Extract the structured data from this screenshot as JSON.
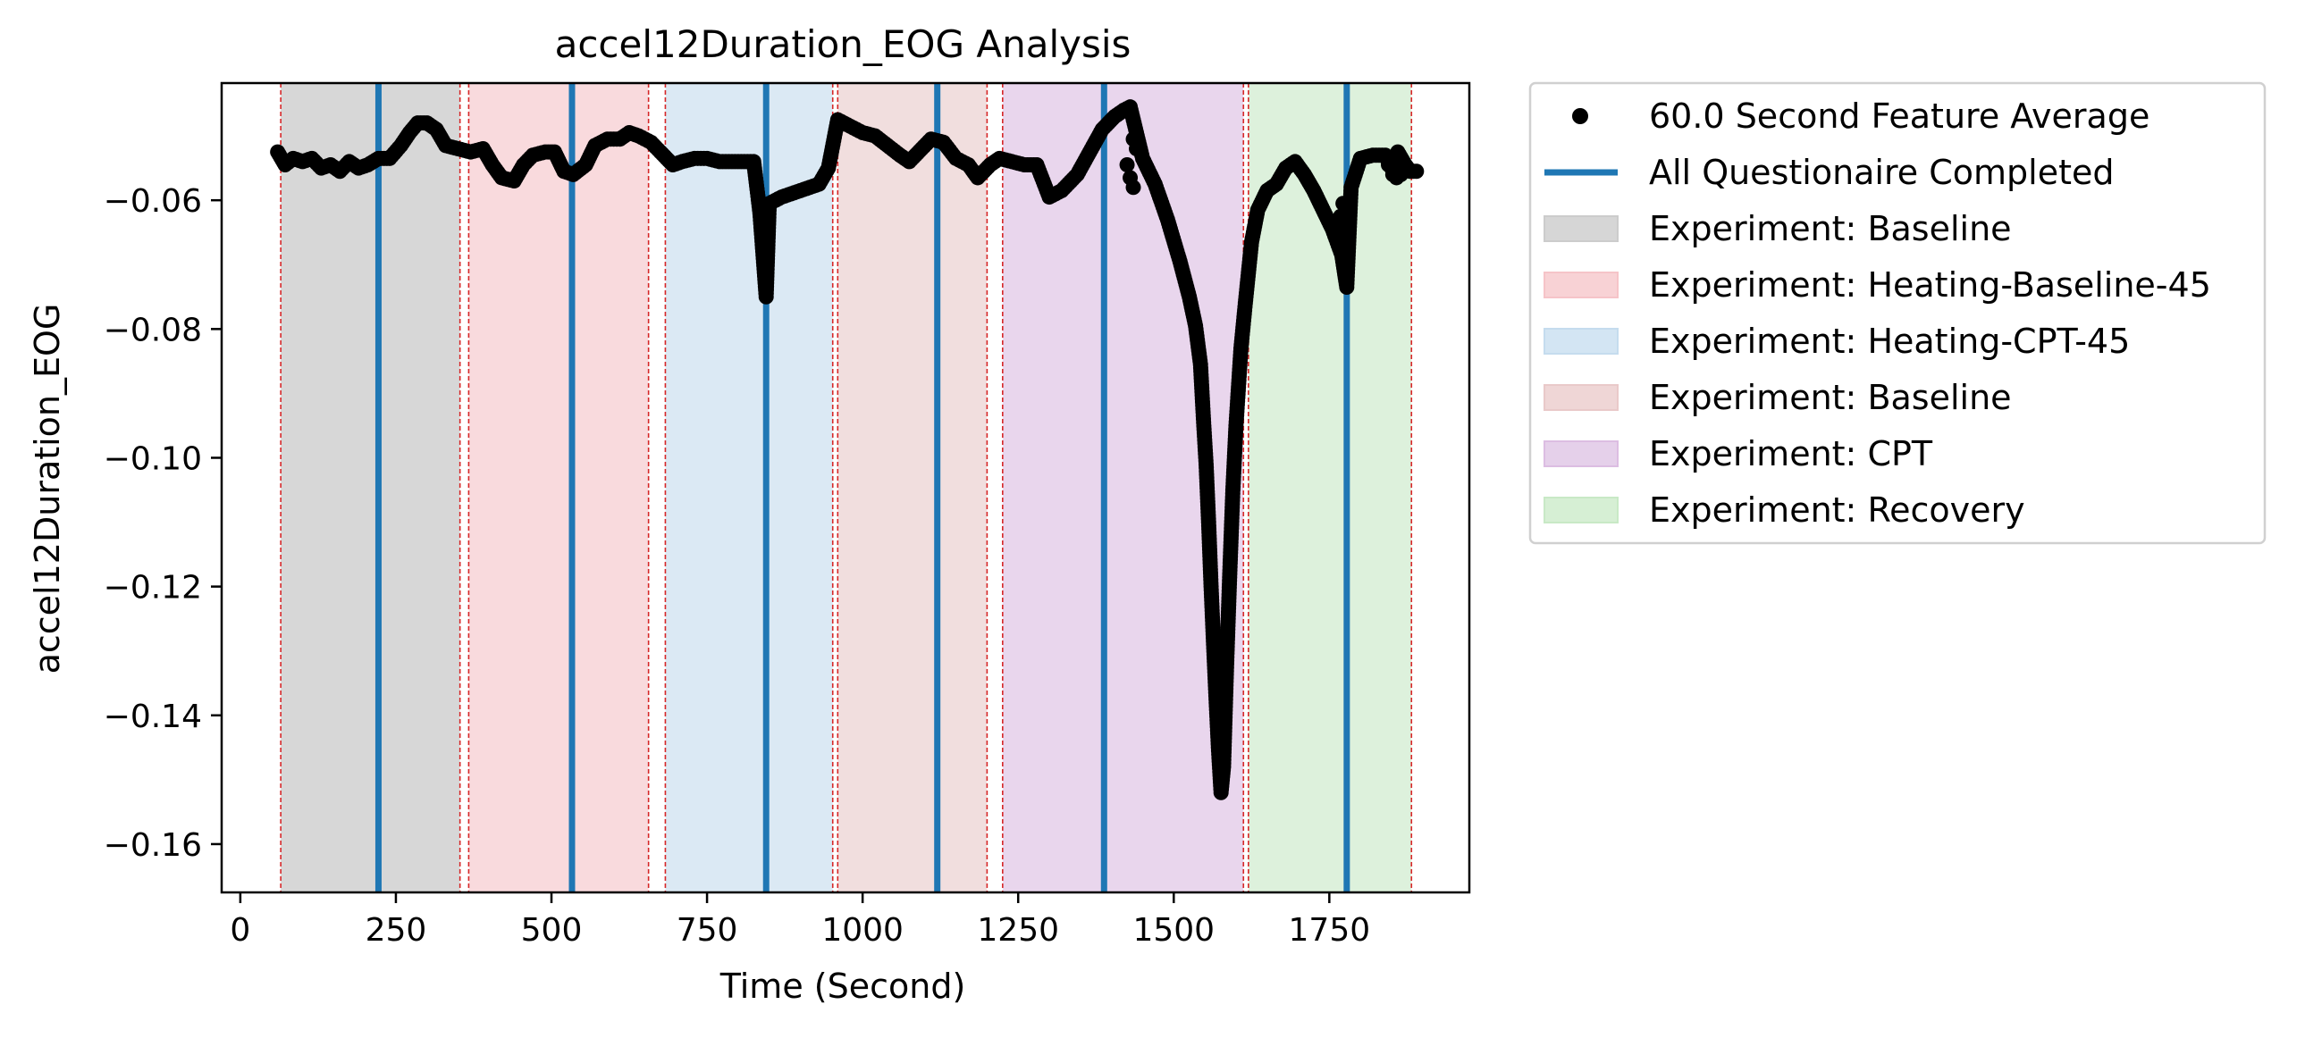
{
  "chart_data": {
    "type": "scatter",
    "title": "accel12Duration_EOG Analysis",
    "xlabel": "Time (Second)",
    "ylabel": "accel12Duration_EOG",
    "xlim": [
      -30,
      1975
    ],
    "ylim": [
      -0.1675,
      -0.0418
    ],
    "xticks": [
      0,
      250,
      500,
      750,
      1000,
      1250,
      1500,
      1750
    ],
    "xtick_labels": [
      "0",
      "250",
      "500",
      "750",
      "1000",
      "1250",
      "1500",
      "1750"
    ],
    "yticks": [
      -0.06,
      -0.08,
      -0.1,
      -0.12,
      -0.14,
      -0.16
    ],
    "ytick_labels": [
      "−0.06",
      "−0.08",
      "−0.10",
      "−0.12",
      "−0.14",
      "−0.16"
    ],
    "grid": false,
    "legend_position": "outside-top-right",
    "series": [
      {
        "name": "60.0 Second Feature Average",
        "kind": "markers",
        "color": "#000000",
        "keypoints": [
          [
            60,
            -0.0525
          ],
          [
            72,
            -0.0545
          ],
          [
            85,
            -0.0535
          ],
          [
            100,
            -0.054
          ],
          [
            115,
            -0.0535
          ],
          [
            130,
            -0.055
          ],
          [
            145,
            -0.0545
          ],
          [
            160,
            -0.0555
          ],
          [
            175,
            -0.054
          ],
          [
            190,
            -0.055
          ],
          [
            205,
            -0.0545
          ],
          [
            222,
            -0.0535
          ],
          [
            240,
            -0.0535
          ],
          [
            258,
            -0.0515
          ],
          [
            272,
            -0.0495
          ],
          [
            285,
            -0.048
          ],
          [
            300,
            -0.048
          ],
          [
            315,
            -0.049
          ],
          [
            330,
            -0.0515
          ],
          [
            350,
            -0.052
          ],
          [
            370,
            -0.0525
          ],
          [
            390,
            -0.052
          ],
          [
            405,
            -0.0545
          ],
          [
            420,
            -0.0565
          ],
          [
            440,
            -0.057
          ],
          [
            455,
            -0.0545
          ],
          [
            470,
            -0.053
          ],
          [
            490,
            -0.0525
          ],
          [
            505,
            -0.0525
          ],
          [
            520,
            -0.0555
          ],
          [
            535,
            -0.056
          ],
          [
            555,
            -0.0545
          ],
          [
            570,
            -0.0515
          ],
          [
            590,
            -0.0505
          ],
          [
            610,
            -0.0505
          ],
          [
            625,
            -0.0495
          ],
          [
            640,
            -0.05
          ],
          [
            660,
            -0.051
          ],
          [
            675,
            -0.0525
          ],
          [
            695,
            -0.0545
          ],
          [
            710,
            -0.054
          ],
          [
            730,
            -0.0535
          ],
          [
            750,
            -0.0535
          ],
          [
            770,
            -0.054
          ],
          [
            790,
            -0.054
          ],
          [
            810,
            -0.054
          ],
          [
            825,
            -0.054
          ],
          [
            835,
            -0.062
          ],
          [
            845,
            -0.075
          ],
          [
            850,
            -0.0605
          ],
          [
            870,
            -0.0595
          ],
          [
            900,
            -0.0585
          ],
          [
            930,
            -0.0575
          ],
          [
            945,
            -0.055
          ],
          [
            960,
            -0.0475
          ],
          [
            980,
            -0.0485
          ],
          [
            1000,
            -0.0495
          ],
          [
            1020,
            -0.05
          ],
          [
            1040,
            -0.0515
          ],
          [
            1060,
            -0.053
          ],
          [
            1075,
            -0.054
          ],
          [
            1095,
            -0.052
          ],
          [
            1110,
            -0.0505
          ],
          [
            1130,
            -0.051
          ],
          [
            1150,
            -0.0535
          ],
          [
            1170,
            -0.0545
          ],
          [
            1185,
            -0.0565
          ],
          [
            1205,
            -0.0545
          ],
          [
            1220,
            -0.0535
          ],
          [
            1240,
            -0.054
          ],
          [
            1260,
            -0.0545
          ],
          [
            1280,
            -0.0545
          ],
          [
            1300,
            -0.0595
          ],
          [
            1320,
            -0.0585
          ],
          [
            1345,
            -0.056
          ],
          [
            1365,
            -0.0525
          ],
          [
            1385,
            -0.049
          ],
          [
            1405,
            -0.047
          ],
          [
            1420,
            -0.046
          ],
          [
            1430,
            -0.0455
          ],
          [
            1435,
            -0.0475
          ],
          [
            1450,
            -0.0535
          ],
          [
            1470,
            -0.0575
          ],
          [
            1490,
            -0.063
          ],
          [
            1510,
            -0.0695
          ],
          [
            1525,
            -0.075
          ],
          [
            1535,
            -0.0795
          ],
          [
            1543,
            -0.0855
          ],
          [
            1548,
            -0.0945
          ],
          [
            1552,
            -0.101
          ],
          [
            1556,
            -0.11
          ],
          [
            1560,
            -0.12
          ],
          [
            1564,
            -0.129
          ],
          [
            1568,
            -0.1375
          ],
          [
            1572,
            -0.1455
          ],
          [
            1576,
            -0.152
          ],
          [
            1580,
            -0.148
          ],
          [
            1585,
            -0.132
          ],
          [
            1590,
            -0.118
          ],
          [
            1595,
            -0.105
          ],
          [
            1600,
            -0.095
          ],
          [
            1608,
            -0.083
          ],
          [
            1615,
            -0.076
          ],
          [
            1625,
            -0.0665
          ],
          [
            1635,
            -0.0615
          ],
          [
            1650,
            -0.0585
          ],
          [
            1665,
            -0.0575
          ],
          [
            1680,
            -0.055
          ],
          [
            1695,
            -0.054
          ],
          [
            1710,
            -0.056
          ],
          [
            1725,
            -0.0585
          ],
          [
            1740,
            -0.0615
          ],
          [
            1755,
            -0.0645
          ],
          [
            1770,
            -0.0685
          ],
          [
            1778,
            -0.0735
          ],
          [
            1785,
            -0.058
          ],
          [
            1800,
            -0.0535
          ],
          [
            1820,
            -0.053
          ],
          [
            1840,
            -0.053
          ],
          [
            1850,
            -0.055
          ],
          [
            1860,
            -0.0525
          ],
          [
            1872,
            -0.0545
          ],
          [
            1880,
            -0.0555
          ],
          [
            1890,
            -0.0555
          ]
        ],
        "extra_points": [
          [
            1425,
            -0.0545
          ],
          [
            1430,
            -0.0565
          ],
          [
            1435,
            -0.058
          ],
          [
            1765,
            -0.0645
          ],
          [
            1768,
            -0.0625
          ],
          [
            1772,
            -0.0605
          ],
          [
            1845,
            -0.0545
          ],
          [
            1852,
            -0.056
          ],
          [
            1858,
            -0.0565
          ],
          [
            1865,
            -0.056
          ],
          [
            1435,
            -0.0505
          ],
          [
            1440,
            -0.052
          ]
        ]
      },
      {
        "name": "All Questionaire Completed",
        "kind": "vlines",
        "color": "#1f77b4",
        "x": [
          222,
          533,
          845,
          1120,
          1388,
          1778
        ]
      }
    ],
    "phase_boundaries": [
      65,
      353,
      367,
      656,
      683,
      952,
      960,
      1200,
      1225,
      1612,
      1620,
      1882
    ],
    "spans": [
      {
        "name": "Experiment: Baseline",
        "x": [
          65,
          353
        ],
        "color": "#cccccc",
        "alpha": 0.78
      },
      {
        "name": "Experiment: Heating-Baseline-45",
        "x": [
          367,
          656
        ],
        "color": "#f6c4c8",
        "alpha": 0.62
      },
      {
        "name": "Experiment: Heating-CPT-45",
        "x": [
          683,
          952
        ],
        "color": "#c5dcee",
        "alpha": 0.62
      },
      {
        "name": "Experiment: Baseline",
        "x": [
          960,
          1200
        ],
        "color": "#e9c9c9",
        "alpha": 0.62
      },
      {
        "name": "Experiment: CPT",
        "x": [
          1225,
          1612
        ],
        "color": "#dcbde2",
        "alpha": 0.62
      },
      {
        "name": "Experiment: Recovery",
        "x": [
          1620,
          1882
        ],
        "color": "#c8e9c6",
        "alpha": 0.62
      }
    ]
  },
  "legend": [
    {
      "label": "60.0 Second Feature Average",
      "kind": "marker",
      "color": "#000000"
    },
    {
      "label": "All Questionaire Completed",
      "kind": "line",
      "color": "#1f77b4"
    },
    {
      "label": "Experiment: Baseline",
      "kind": "patch",
      "color": "#d6d6d6"
    },
    {
      "label": "Experiment: Heating-Baseline-45",
      "kind": "patch",
      "color": "#f8d2d5"
    },
    {
      "label": "Experiment: Heating-CPT-45",
      "kind": "patch",
      "color": "#d3e5f3"
    },
    {
      "label": "Experiment: Baseline",
      "kind": "patch",
      "color": "#efd6d6"
    },
    {
      "label": "Experiment: CPT",
      "kind": "patch",
      "color": "#e5d0ea"
    },
    {
      "label": "Experiment: Recovery",
      "kind": "patch",
      "color": "#d6efd4"
    }
  ]
}
